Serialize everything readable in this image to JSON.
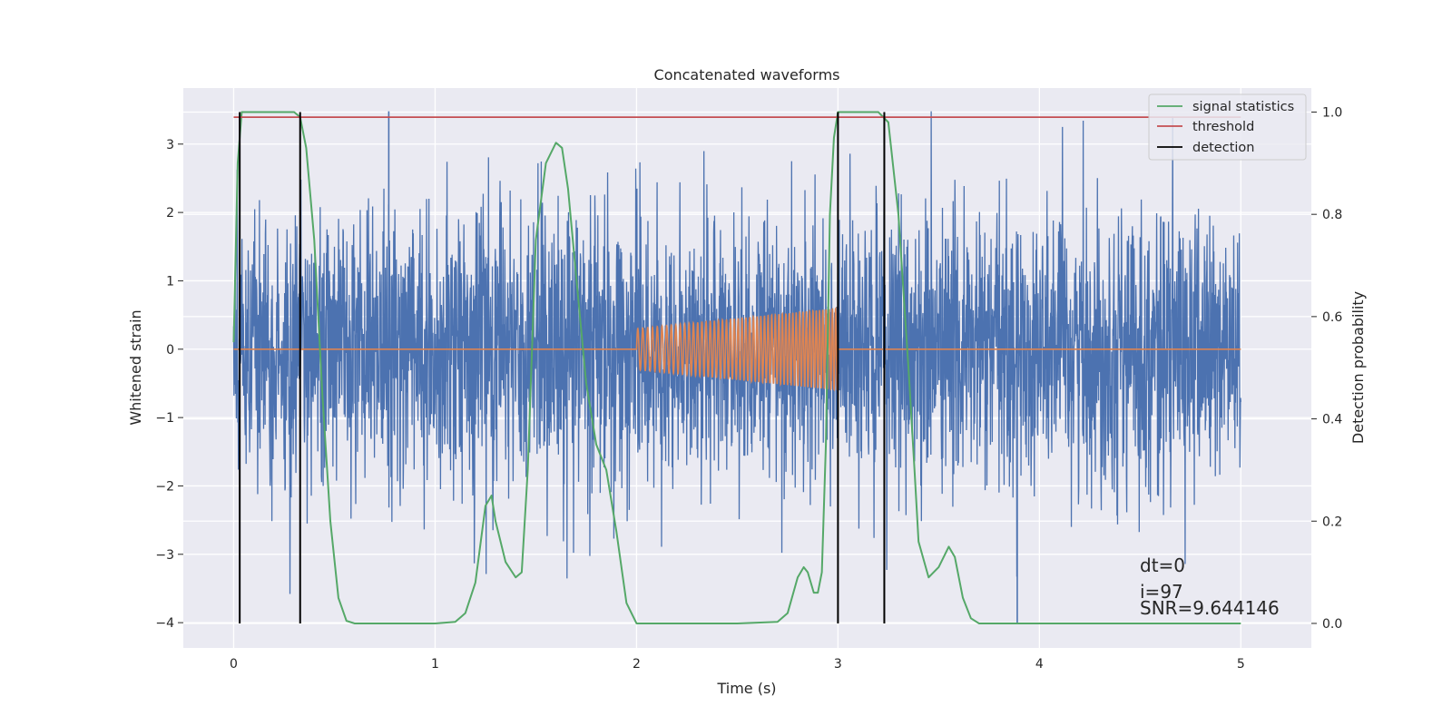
{
  "chart_data": {
    "type": "line",
    "title": "Concatenated waveforms",
    "xlabel": "Time (s)",
    "ylabel": "Whitened strain",
    "ylabel_right": "Detection probability",
    "xlim": [
      -0.25,
      5.35
    ],
    "ylim": [
      -4.37,
      3.82
    ],
    "ylim_right": [
      -0.048,
      1.047
    ],
    "x_ticks": [
      0,
      1,
      2,
      3,
      4,
      5
    ],
    "x_tick_labels": [
      "0",
      "1",
      "2",
      "3",
      "4",
      "5"
    ],
    "y_ticks": [
      -4,
      -3,
      -2,
      -1,
      0,
      1,
      2,
      3
    ],
    "y_tick_labels": [
      "−4",
      "−3",
      "−2",
      "−1",
      "0",
      "1",
      "2",
      "3"
    ],
    "y_right_ticks": [
      0.0,
      0.2,
      0.4,
      0.6,
      0.8,
      1.0
    ],
    "y_right_tick_labels": [
      "0.0",
      "0.2",
      "0.4",
      "0.6",
      "0.8",
      "1.0"
    ],
    "grid": true,
    "legend_position": "top-right",
    "colors": {
      "strain": "#4c72b0",
      "injection": "#dd8452",
      "signal_statistics": "#55a868",
      "threshold": "#c44e52",
      "detection": "#000000",
      "axes_bg": "#eaeaf2",
      "grid": "#ffffff"
    },
    "series": [
      {
        "name": "signal statistics",
        "axis": "right",
        "x": [
          0.0,
          0.02,
          0.04,
          0.07,
          0.1,
          0.2,
          0.3,
          0.33,
          0.36,
          0.4,
          0.44,
          0.48,
          0.52,
          0.56,
          0.6,
          0.8,
          1.0,
          1.1,
          1.15,
          1.2,
          1.25,
          1.28,
          1.3,
          1.35,
          1.4,
          1.43,
          1.46,
          1.5,
          1.55,
          1.6,
          1.63,
          1.66,
          1.7,
          1.75,
          1.8,
          1.85,
          1.9,
          1.95,
          2.0,
          2.05,
          2.2,
          2.5,
          2.7,
          2.75,
          2.8,
          2.83,
          2.85,
          2.88,
          2.9,
          2.92,
          2.94,
          2.96,
          2.98,
          3.0,
          3.05,
          3.2,
          3.25,
          3.3,
          3.35,
          3.38,
          3.4,
          3.45,
          3.5,
          3.55,
          3.58,
          3.62,
          3.66,
          3.7,
          3.8,
          4.0,
          4.5,
          5.0
        ],
        "y": [
          0.55,
          0.9,
          1.0,
          1.0,
          1.0,
          1.0,
          1.0,
          0.99,
          0.93,
          0.75,
          0.45,
          0.2,
          0.05,
          0.005,
          0.0,
          0.0,
          0.0,
          0.003,
          0.02,
          0.08,
          0.23,
          0.25,
          0.2,
          0.12,
          0.09,
          0.1,
          0.3,
          0.75,
          0.9,
          0.94,
          0.93,
          0.85,
          0.68,
          0.47,
          0.35,
          0.3,
          0.18,
          0.04,
          0.0,
          0.0,
          0.0,
          0.0,
          0.003,
          0.02,
          0.09,
          0.11,
          0.1,
          0.06,
          0.06,
          0.1,
          0.35,
          0.8,
          0.95,
          1.0,
          1.0,
          1.0,
          0.98,
          0.8,
          0.5,
          0.3,
          0.16,
          0.09,
          0.11,
          0.15,
          0.13,
          0.05,
          0.01,
          0.0,
          0.0,
          0.0,
          0.0,
          0.0
        ]
      },
      {
        "name": "threshold",
        "axis": "right",
        "x": [
          0.0,
          5.0
        ],
        "y": [
          0.99,
          0.99
        ]
      },
      {
        "name": "detection",
        "axis": "right",
        "x": [
          0.03,
          0.33,
          3.0,
          3.23
        ],
        "y_range": [
          0.0,
          1.0
        ]
      }
    ],
    "strain": {
      "x_range": [
        0.0,
        5.0
      ],
      "typical_amplitude": 1.0,
      "min": -4.0,
      "max": 3.48
    },
    "injection": {
      "x_range": [
        2.0,
        3.0
      ],
      "amplitude_start": 0.3,
      "amplitude_end": 0.6
    },
    "annotations": [
      "dt=0",
      "i=97",
      "SNR=9.644146"
    ]
  }
}
